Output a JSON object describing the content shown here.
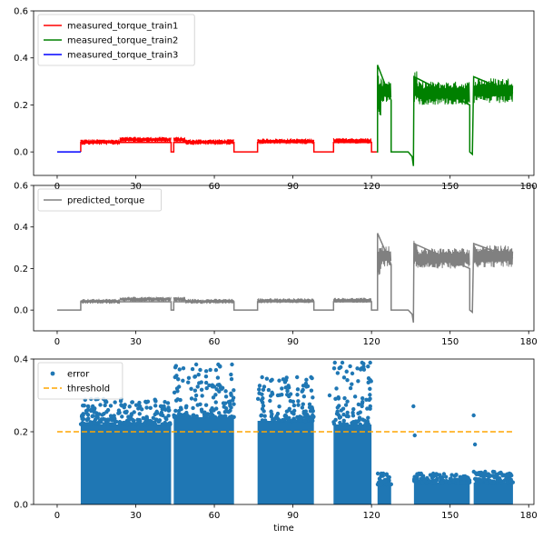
{
  "chart_data": [
    {
      "type": "line",
      "xlabel": "",
      "ylabel": "",
      "xlim": [
        -9,
        182
      ],
      "ylim": [
        -0.1,
        0.6
      ],
      "x_ticks": [
        0,
        30,
        60,
        90,
        120,
        150,
        180
      ],
      "y_ticks": [
        0.0,
        0.2,
        0.4,
        0.6
      ],
      "y_tick_labels": [
        "0.0",
        "0.2",
        "0.4",
        "0.6"
      ],
      "legend_position": "top-left",
      "grid": false,
      "series": [
        {
          "name": "measured_torque_train1",
          "color": "#ff0000",
          "segments": [
            {
              "x": [
                9,
                24
              ],
              "base": 0.042,
              "noise": 0.012
            },
            {
              "x": [
                24,
                43.5
              ],
              "base": 0.052,
              "noise": 0.012
            },
            {
              "x": [
                44.5,
                49
              ],
              "base": 0.052,
              "noise": 0.012
            },
            {
              "x": [
                49,
                67.5
              ],
              "base": 0.042,
              "noise": 0.012
            },
            {
              "x": [
                76.5,
                98
              ],
              "base": 0.045,
              "noise": 0.012
            },
            {
              "x": [
                105.5,
                120
              ],
              "base": 0.047,
              "noise": 0.012
            }
          ],
          "path": [
            [
              9,
              0
            ],
            [
              9,
              0.04
            ],
            [
              43.5,
              0.04
            ],
            [
              43.5,
              0
            ],
            [
              44.5,
              0
            ],
            [
              44.5,
              0.04
            ],
            [
              67.5,
              0.04
            ],
            [
              67.5,
              0
            ],
            [
              76.5,
              0
            ],
            [
              76.5,
              0.04
            ],
            [
              98,
              0.04
            ],
            [
              98,
              0
            ],
            [
              105.5,
              0
            ],
            [
              105.5,
              0.04
            ],
            [
              120,
              0.04
            ],
            [
              120,
              0
            ],
            [
              122,
              0
            ]
          ]
        },
        {
          "name": "measured_torque_train2",
          "color": "#008000",
          "segments": [
            {
              "x": [
                122.3,
                123.8
              ],
              "base": 0.24,
              "noise": 0.09
            },
            {
              "x": [
                123.8,
                127.5
              ],
              "base": 0.26,
              "noise": 0.05
            },
            {
              "x": [
                136.2,
                137.5
              ],
              "base": 0.28,
              "noise": 0.07
            },
            {
              "x": [
                137.5,
                157.5
              ],
              "base": 0.25,
              "noise": 0.05
            },
            {
              "x": [
                159,
                174
              ],
              "base": 0.26,
              "noise": 0.055
            }
          ],
          "path": [
            [
              122,
              0
            ],
            [
              122.3,
              0
            ],
            [
              122.3,
              0.37
            ],
            [
              127.5,
              0.22
            ],
            [
              127.5,
              0
            ],
            [
              134,
              0
            ],
            [
              135.5,
              -0.02
            ],
            [
              136,
              -0.06
            ],
            [
              136.2,
              0.32
            ],
            [
              157.5,
              0.2
            ],
            [
              157.5,
              0
            ],
            [
              158.5,
              -0.01
            ],
            [
              159,
              0.32
            ],
            [
              174,
              0.25
            ]
          ]
        },
        {
          "name": "measured_torque_train3",
          "color": "#0000ff",
          "path": [
            [
              0,
              0
            ],
            [
              9,
              0
            ]
          ]
        }
      ]
    },
    {
      "type": "line",
      "xlabel": "",
      "ylabel": "",
      "xlim": [
        -9,
        182
      ],
      "ylim": [
        -0.1,
        0.6
      ],
      "x_ticks": [
        0,
        30,
        60,
        90,
        120,
        150,
        180
      ],
      "y_ticks": [
        0.0,
        0.2,
        0.4,
        0.6
      ],
      "y_tick_labels": [
        "0.0",
        "0.2",
        "0.4",
        "0.6"
      ],
      "legend_position": "top-left",
      "grid": false,
      "series": [
        {
          "name": "predicted_torque",
          "color": "#808080",
          "segments": [
            {
              "x": [
                9,
                24
              ],
              "base": 0.042,
              "noise": 0.012
            },
            {
              "x": [
                24,
                43.5
              ],
              "base": 0.052,
              "noise": 0.012
            },
            {
              "x": [
                44.5,
                49
              ],
              "base": 0.052,
              "noise": 0.012
            },
            {
              "x": [
                49,
                67.5
              ],
              "base": 0.042,
              "noise": 0.012
            },
            {
              "x": [
                76.5,
                98
              ],
              "base": 0.045,
              "noise": 0.012
            },
            {
              "x": [
                105.5,
                120
              ],
              "base": 0.047,
              "noise": 0.012
            },
            {
              "x": [
                122.3,
                123.8
              ],
              "base": 0.24,
              "noise": 0.09
            },
            {
              "x": [
                123.8,
                127.5
              ],
              "base": 0.26,
              "noise": 0.05
            },
            {
              "x": [
                136.2,
                137.5
              ],
              "base": 0.28,
              "noise": 0.07
            },
            {
              "x": [
                137.5,
                157.5
              ],
              "base": 0.25,
              "noise": 0.05
            },
            {
              "x": [
                159,
                174
              ],
              "base": 0.26,
              "noise": 0.055
            }
          ],
          "path": [
            [
              0,
              0
            ],
            [
              9,
              0
            ],
            [
              9,
              0.04
            ],
            [
              43.5,
              0.04
            ],
            [
              43.5,
              0
            ],
            [
              44.5,
              0
            ],
            [
              44.5,
              0.04
            ],
            [
              67.5,
              0.04
            ],
            [
              67.5,
              0
            ],
            [
              76.5,
              0
            ],
            [
              76.5,
              0.04
            ],
            [
              98,
              0.04
            ],
            [
              98,
              0
            ],
            [
              105.5,
              0
            ],
            [
              105.5,
              0.04
            ],
            [
              120,
              0.04
            ],
            [
              120,
              0
            ],
            [
              122.3,
              0
            ],
            [
              122.3,
              0.37
            ],
            [
              127.5,
              0.22
            ],
            [
              127.5,
              0
            ],
            [
              134,
              0
            ],
            [
              135.5,
              -0.02
            ],
            [
              136,
              -0.06
            ],
            [
              136.2,
              0.32
            ],
            [
              157.5,
              0.2
            ],
            [
              157.5,
              0
            ],
            [
              158.5,
              -0.01
            ],
            [
              159,
              0.32
            ],
            [
              174,
              0.25
            ]
          ]
        }
      ]
    },
    {
      "type": "scatter",
      "xlabel": "time",
      "ylabel": "",
      "xlim": [
        -9,
        182
      ],
      "ylim": [
        0.0,
        0.4
      ],
      "x_ticks": [
        0,
        30,
        60,
        90,
        120,
        150,
        180
      ],
      "y_ticks": [
        0.0,
        0.2,
        0.4
      ],
      "y_tick_labels": [
        "0.0",
        "0.2",
        "0.4"
      ],
      "legend_position": "top-left",
      "grid": false,
      "series": [
        {
          "name": "error",
          "color": "#1f77b4",
          "marker": "dot",
          "clusters": [
            {
              "x": [
                9,
                43.5
              ],
              "solid_top": 0.22,
              "max": 0.29
            },
            {
              "x": [
                44.5,
                67.5
              ],
              "solid_top": 0.24,
              "max": 0.385
            },
            {
              "x": [
                76.5,
                98
              ],
              "solid_top": 0.23,
              "max": 0.35
            },
            {
              "x": [
                105.5,
                120
              ],
              "solid_top": 0.22,
              "max": 0.39
            },
            {
              "x": [
                122.3,
                127.5
              ],
              "solid_top": 0.055,
              "max": 0.085
            },
            {
              "x": [
                136.2,
                157.5
              ],
              "solid_top": 0.06,
              "max": 0.085
            },
            {
              "x": [
                159,
                174
              ],
              "solid_top": 0.06,
              "max": 0.09
            }
          ],
          "outliers": [
            [
              45,
              0.35
            ],
            [
              104,
              0.3
            ],
            [
              106,
              0.39
            ],
            [
              136,
              0.27
            ],
            [
              136.5,
              0.19
            ],
            [
              159,
              0.245
            ],
            [
              159.5,
              0.165
            ]
          ]
        },
        {
          "name": "threshold",
          "color": "#ffa500",
          "style": "dashed",
          "x": [
            0,
            174
          ],
          "values": [
            0.2,
            0.2
          ]
        }
      ]
    }
  ]
}
